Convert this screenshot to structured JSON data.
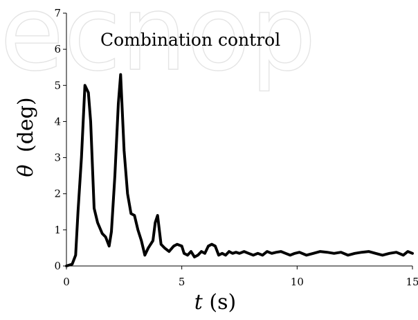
{
  "watermark": "ecnop",
  "chart_data": {
    "type": "line",
    "title": "Combination control",
    "xlabel_var": "t",
    "xlabel_unit": "(s)",
    "ylabel_var": "θ",
    "ylabel_unit": "(deg)",
    "xlim": [
      0,
      15
    ],
    "ylim": [
      0,
      7
    ],
    "xticks": [
      0,
      5,
      10,
      15
    ],
    "yticks": [
      0,
      1,
      2,
      3,
      4,
      5,
      6,
      7
    ],
    "grid": false,
    "series": [
      {
        "color": "#000000",
        "x": [
          0,
          0.25,
          0.4,
          0.5,
          0.65,
          0.8,
          0.95,
          1.05,
          1.2,
          1.35,
          1.55,
          1.7,
          1.85,
          1.95,
          2.1,
          2.25,
          2.35,
          2.5,
          2.65,
          2.8,
          2.95,
          3.1,
          3.25,
          3.4,
          3.55,
          3.75,
          3.85,
          3.95,
          4.1,
          4.25,
          4.45,
          4.65,
          4.8,
          5.0,
          5.1,
          5.25,
          5.4,
          5.55,
          5.7,
          5.85,
          6.0,
          6.15,
          6.3,
          6.45,
          6.6,
          6.75,
          6.9,
          7.05,
          7.2,
          7.35,
          7.5,
          7.7,
          7.9,
          8.1,
          8.3,
          8.5,
          8.7,
          8.9,
          9.1,
          9.3,
          9.5,
          9.7,
          9.9,
          10.1,
          10.4,
          10.7,
          11.0,
          11.3,
          11.6,
          11.9,
          12.2,
          12.5,
          12.8,
          13.1,
          13.4,
          13.7,
          14.0,
          14.3,
          14.6,
          14.8,
          15.0
        ],
        "y": [
          0.0,
          0.05,
          0.3,
          1.5,
          3.0,
          5.0,
          4.8,
          4.0,
          1.6,
          1.2,
          0.9,
          0.8,
          0.55,
          0.95,
          2.5,
          4.5,
          5.3,
          3.2,
          2.0,
          1.45,
          1.4,
          1.0,
          0.7,
          0.3,
          0.5,
          0.7,
          1.2,
          1.4,
          0.6,
          0.5,
          0.4,
          0.55,
          0.6,
          0.55,
          0.35,
          0.3,
          0.4,
          0.25,
          0.3,
          0.4,
          0.35,
          0.55,
          0.6,
          0.55,
          0.3,
          0.35,
          0.3,
          0.4,
          0.35,
          0.38,
          0.35,
          0.4,
          0.35,
          0.3,
          0.35,
          0.3,
          0.4,
          0.35,
          0.38,
          0.4,
          0.35,
          0.3,
          0.35,
          0.38,
          0.3,
          0.35,
          0.4,
          0.38,
          0.35,
          0.38,
          0.3,
          0.35,
          0.38,
          0.4,
          0.35,
          0.3,
          0.35,
          0.38,
          0.3,
          0.4,
          0.35
        ]
      }
    ]
  }
}
